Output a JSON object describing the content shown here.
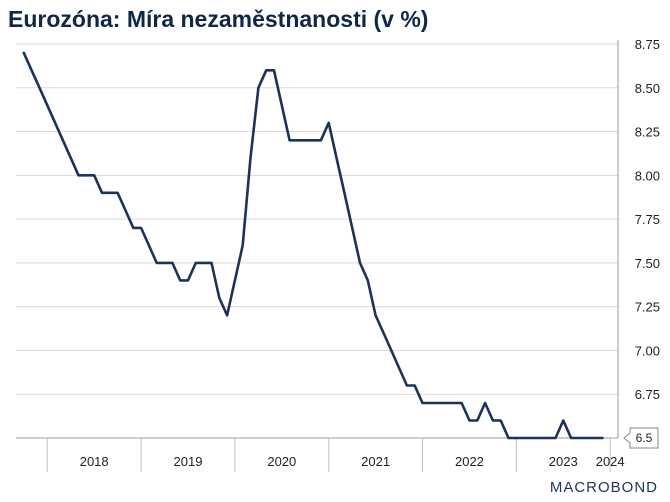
{
  "header": {
    "title": "Eurozóna: Míra nezaměstnanosti (v %)"
  },
  "footer": {
    "logo": "MACROBOND"
  },
  "chart_data": {
    "type": "line",
    "title": "Eurozóna: Míra nezaměstnanosti (v %)",
    "xlabel": "",
    "ylabel": "",
    "ylim": [
      6.5,
      8.75
    ],
    "yticks": [
      "6.75",
      "7.00",
      "7.25",
      "7.50",
      "7.75",
      "8.00",
      "8.25",
      "8.50",
      "8.75"
    ],
    "xticks": [
      "2018",
      "2019",
      "2020",
      "2021",
      "2022",
      "2023",
      "2024"
    ],
    "grid": true,
    "last_value_label": "6.5",
    "x": [
      "2017-10",
      "2017-11",
      "2017-12",
      "2018-01",
      "2018-02",
      "2018-03",
      "2018-04",
      "2018-05",
      "2018-06",
      "2018-07",
      "2018-08",
      "2018-09",
      "2018-10",
      "2018-11",
      "2018-12",
      "2019-01",
      "2019-02",
      "2019-03",
      "2019-04",
      "2019-05",
      "2019-06",
      "2019-07",
      "2019-08",
      "2019-09",
      "2019-10",
      "2019-11",
      "2019-12",
      "2020-01",
      "2020-02",
      "2020-03",
      "2020-04",
      "2020-05",
      "2020-06",
      "2020-07",
      "2020-08",
      "2020-09",
      "2020-10",
      "2020-11",
      "2020-12",
      "2021-01",
      "2021-02",
      "2021-03",
      "2021-04",
      "2021-05",
      "2021-06",
      "2021-07",
      "2021-08",
      "2021-09",
      "2021-10",
      "2021-11",
      "2021-12",
      "2022-01",
      "2022-02",
      "2022-03",
      "2022-04",
      "2022-05",
      "2022-06",
      "2022-07",
      "2022-08",
      "2022-09",
      "2022-10",
      "2022-11",
      "2022-12",
      "2023-01",
      "2023-02",
      "2023-03",
      "2023-04",
      "2023-05",
      "2023-06",
      "2023-07",
      "2023-08",
      "2023-09",
      "2023-10",
      "2023-11",
      "2023-12"
    ],
    "series": [
      {
        "values": [
          8.7,
          8.6,
          8.5,
          8.4,
          8.3,
          8.2,
          8.1,
          8.0,
          8.0,
          8.0,
          7.9,
          7.9,
          7.9,
          7.8,
          7.7,
          7.7,
          7.6,
          7.5,
          7.5,
          7.5,
          7.4,
          7.4,
          7.5,
          7.5,
          7.5,
          7.3,
          7.2,
          7.4,
          7.6,
          8.1,
          8.5,
          8.6,
          8.6,
          8.4,
          8.2,
          8.2,
          8.2,
          8.2,
          8.2,
          8.3,
          8.1,
          7.9,
          7.7,
          7.5,
          7.4,
          7.2,
          7.1,
          7.0,
          6.9,
          6.8,
          6.8,
          6.7,
          6.7,
          6.7,
          6.7,
          6.7,
          6.7,
          6.6,
          6.6,
          6.7,
          6.6,
          6.6,
          6.5,
          6.5,
          6.5,
          6.5,
          6.5,
          6.5,
          6.5,
          6.6,
          6.5,
          6.5,
          6.5,
          6.5,
          6.5
        ]
      }
    ],
    "colors": {
      "line": "#1b3358",
      "grid": "#d9d9d9",
      "axis": "#999999"
    }
  }
}
